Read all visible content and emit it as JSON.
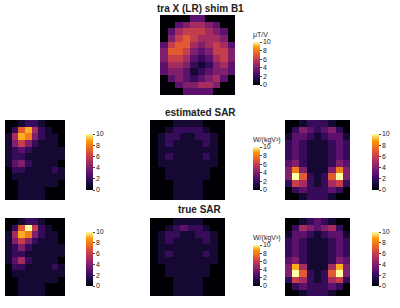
{
  "chart_data": [
    {
      "type": "heatmap",
      "title": "tra X (LR) shim B1",
      "tick_labels": false,
      "colorbar": {
        "range": [
          0,
          10
        ],
        "ticks": [
          0,
          2,
          4,
          6,
          8,
          10
        ],
        "title": "μT/V"
      },
      "z": [
        [
          0,
          0,
          0,
          0,
          3,
          3,
          0,
          0,
          0,
          0
        ],
        [
          0,
          0,
          3,
          4,
          5,
          5,
          4,
          3,
          0,
          0
        ],
        [
          0,
          3,
          5,
          6,
          6,
          6,
          5,
          4,
          3,
          0
        ],
        [
          0,
          4,
          6,
          7,
          6,
          5,
          5,
          5,
          4,
          0
        ],
        [
          3,
          6,
          7,
          7,
          5,
          4,
          5,
          6,
          5,
          3
        ],
        [
          4,
          7,
          7,
          6,
          4,
          3,
          4,
          6,
          6,
          4
        ],
        [
          4,
          6,
          6,
          5,
          3,
          2,
          3,
          5,
          6,
          4
        ],
        [
          3,
          5,
          5,
          4,
          2,
          1,
          2,
          4,
          5,
          3
        ],
        [
          3,
          4,
          4,
          3,
          1,
          2,
          3,
          4,
          4,
          3
        ],
        [
          0,
          3,
          4,
          3,
          2,
          3,
          4,
          5,
          3,
          0
        ],
        [
          0,
          0,
          3,
          4,
          4,
          5,
          5,
          4,
          0,
          0
        ],
        [
          0,
          0,
          0,
          3,
          3,
          3,
          3,
          0,
          0,
          0
        ]
      ]
    },
    {
      "type": "heatmap",
      "tick_labels": false,
      "colorbar": {
        "range": [
          0,
          10
        ],
        "ticks": [
          0,
          2,
          4,
          6,
          8,
          10
        ]
      },
      "z": [
        [
          0,
          0,
          1,
          2,
          2,
          1,
          0,
          0,
          0
        ],
        [
          0,
          2,
          7,
          9,
          5,
          2,
          1,
          0,
          0
        ],
        [
          1,
          5,
          9,
          8,
          4,
          2,
          1,
          1,
          0
        ],
        [
          1,
          4,
          6,
          4,
          2,
          1,
          1,
          1,
          0
        ],
        [
          1,
          2,
          3,
          2,
          1,
          1,
          1,
          1,
          1
        ],
        [
          1,
          2,
          2,
          1,
          1,
          1,
          1,
          1,
          1
        ],
        [
          1,
          3,
          4,
          2,
          1,
          1,
          1,
          1,
          0
        ],
        [
          0,
          2,
          2,
          1,
          1,
          1,
          1,
          2,
          1
        ],
        [
          0,
          1,
          1,
          1,
          1,
          1,
          1,
          1,
          1
        ],
        [
          0,
          0,
          1,
          1,
          1,
          1,
          1,
          1,
          0
        ],
        [
          0,
          0,
          1,
          1,
          1,
          1,
          0,
          0,
          0
        ],
        [
          0,
          0,
          1,
          1,
          1,
          1,
          0,
          0,
          0
        ]
      ]
    },
    {
      "type": "heatmap",
      "title": "estimated SAR",
      "tick_labels": false,
      "colorbar": {
        "range": [
          0,
          10
        ],
        "ticks": [
          0,
          2,
          4,
          6,
          8,
          10
        ],
        "title": "W/(kgV²)"
      },
      "z": [
        [
          0,
          0,
          0,
          1,
          1,
          1,
          1,
          0,
          0,
          0
        ],
        [
          0,
          0,
          1,
          2,
          2,
          2,
          2,
          1,
          0,
          0
        ],
        [
          0,
          1,
          2,
          2,
          1,
          1,
          2,
          2,
          1,
          0
        ],
        [
          0,
          1,
          2,
          1,
          1,
          1,
          1,
          2,
          1,
          0
        ],
        [
          0,
          1,
          1,
          1,
          1,
          1,
          1,
          1,
          1,
          0
        ],
        [
          0,
          1,
          2,
          1,
          1,
          1,
          1,
          2,
          1,
          0
        ],
        [
          0,
          1,
          1,
          1,
          1,
          1,
          1,
          1,
          1,
          0
        ],
        [
          0,
          0,
          1,
          1,
          1,
          1,
          1,
          1,
          0,
          0
        ],
        [
          0,
          0,
          1,
          1,
          1,
          1,
          1,
          1,
          0,
          0
        ],
        [
          0,
          0,
          0,
          1,
          1,
          1,
          1,
          0,
          0,
          0
        ],
        [
          0,
          0,
          0,
          1,
          1,
          1,
          1,
          0,
          0,
          0
        ],
        [
          0,
          0,
          0,
          1,
          1,
          1,
          1,
          0,
          0,
          0
        ]
      ]
    },
    {
      "type": "heatmap",
      "tick_labels": false,
      "colorbar": {
        "range": [
          0,
          10
        ],
        "ticks": [
          0,
          2,
          4,
          6,
          8,
          10
        ]
      },
      "z": [
        [
          0,
          0,
          1,
          2,
          2,
          2,
          1,
          0,
          0
        ],
        [
          0,
          2,
          4,
          3,
          2,
          3,
          4,
          2,
          0
        ],
        [
          1,
          3,
          3,
          2,
          1,
          2,
          3,
          3,
          1
        ],
        [
          2,
          3,
          2,
          1,
          1,
          1,
          2,
          3,
          2
        ],
        [
          2,
          3,
          2,
          1,
          1,
          1,
          2,
          3,
          2
        ],
        [
          2,
          3,
          2,
          1,
          1,
          1,
          2,
          3,
          2
        ],
        [
          3,
          4,
          2,
          1,
          1,
          1,
          2,
          4,
          3
        ],
        [
          4,
          8,
          4,
          1,
          1,
          1,
          4,
          8,
          4
        ],
        [
          4,
          10,
          7,
          2,
          1,
          2,
          7,
          10,
          4
        ],
        [
          2,
          6,
          5,
          2,
          1,
          2,
          5,
          6,
          2
        ],
        [
          0,
          2,
          3,
          2,
          2,
          2,
          3,
          2,
          0
        ],
        [
          0,
          0,
          1,
          2,
          2,
          2,
          1,
          0,
          0
        ]
      ]
    },
    {
      "type": "heatmap",
      "tick_labels": false,
      "colorbar": {
        "range": [
          0,
          10
        ],
        "ticks": [
          0,
          2,
          4,
          6,
          8,
          10
        ]
      },
      "z": [
        [
          0,
          0,
          1,
          2,
          2,
          1,
          0,
          0,
          0
        ],
        [
          0,
          2,
          7,
          10,
          6,
          2,
          1,
          0,
          0
        ],
        [
          1,
          5,
          9,
          8,
          4,
          2,
          1,
          1,
          0
        ],
        [
          1,
          4,
          6,
          4,
          2,
          1,
          1,
          1,
          0
        ],
        [
          1,
          2,
          4,
          2,
          1,
          1,
          1,
          1,
          1
        ],
        [
          1,
          2,
          2,
          1,
          1,
          1,
          1,
          1,
          1
        ],
        [
          1,
          3,
          5,
          2,
          1,
          1,
          1,
          1,
          0
        ],
        [
          0,
          2,
          2,
          1,
          1,
          1,
          1,
          2,
          1
        ],
        [
          0,
          1,
          1,
          1,
          1,
          1,
          1,
          1,
          1
        ],
        [
          0,
          0,
          1,
          1,
          1,
          1,
          1,
          1,
          0
        ],
        [
          0,
          0,
          1,
          1,
          1,
          1,
          0,
          0,
          0
        ],
        [
          0,
          0,
          1,
          1,
          1,
          1,
          0,
          0,
          0
        ]
      ]
    },
    {
      "type": "heatmap",
      "title": "true SAR",
      "tick_labels": false,
      "colorbar": {
        "range": [
          0,
          10
        ],
        "ticks": [
          0,
          2,
          4,
          6,
          8,
          10
        ],
        "title": "W/(kgV²)"
      },
      "z": [
        [
          0,
          0,
          0,
          1,
          1,
          1,
          1,
          0,
          0,
          0
        ],
        [
          0,
          0,
          1,
          2,
          3,
          2,
          2,
          1,
          0,
          0
        ],
        [
          0,
          1,
          2,
          2,
          1,
          1,
          2,
          2,
          1,
          0
        ],
        [
          0,
          1,
          2,
          1,
          1,
          1,
          1,
          2,
          1,
          0
        ],
        [
          0,
          1,
          1,
          1,
          1,
          1,
          1,
          1,
          1,
          0
        ],
        [
          0,
          1,
          2,
          1,
          1,
          1,
          1,
          2,
          1,
          0
        ],
        [
          0,
          1,
          1,
          1,
          1,
          1,
          1,
          1,
          1,
          0
        ],
        [
          0,
          0,
          1,
          1,
          1,
          1,
          1,
          1,
          0,
          0
        ],
        [
          0,
          0,
          1,
          1,
          1,
          1,
          1,
          1,
          0,
          0
        ],
        [
          0,
          0,
          0,
          1,
          1,
          1,
          1,
          0,
          0,
          0
        ],
        [
          0,
          0,
          0,
          1,
          1,
          1,
          1,
          0,
          0,
          0
        ],
        [
          0,
          0,
          0,
          1,
          1,
          1,
          1,
          0,
          0,
          0
        ]
      ]
    },
    {
      "type": "heatmap",
      "tick_labels": false,
      "colorbar": {
        "range": [
          0,
          10
        ],
        "ticks": [
          0,
          2,
          4,
          6,
          8,
          10
        ]
      },
      "z": [
        [
          0,
          0,
          1,
          2,
          3,
          2,
          1,
          0,
          0
        ],
        [
          0,
          2,
          5,
          4,
          3,
          4,
          5,
          2,
          0
        ],
        [
          1,
          3,
          3,
          2,
          1,
          2,
          3,
          3,
          1
        ],
        [
          2,
          3,
          2,
          1,
          1,
          1,
          2,
          3,
          2
        ],
        [
          2,
          3,
          2,
          1,
          1,
          1,
          2,
          3,
          2
        ],
        [
          2,
          3,
          2,
          1,
          1,
          1,
          2,
          3,
          2
        ],
        [
          3,
          4,
          2,
          1,
          1,
          1,
          2,
          4,
          3
        ],
        [
          4,
          9,
          5,
          1,
          1,
          1,
          5,
          9,
          4
        ],
        [
          4,
          10,
          7,
          2,
          1,
          2,
          7,
          10,
          4
        ],
        [
          2,
          6,
          5,
          2,
          1,
          2,
          5,
          6,
          2
        ],
        [
          0,
          2,
          3,
          2,
          2,
          2,
          3,
          2,
          0
        ],
        [
          0,
          0,
          1,
          2,
          2,
          2,
          1,
          0,
          0
        ]
      ]
    }
  ]
}
